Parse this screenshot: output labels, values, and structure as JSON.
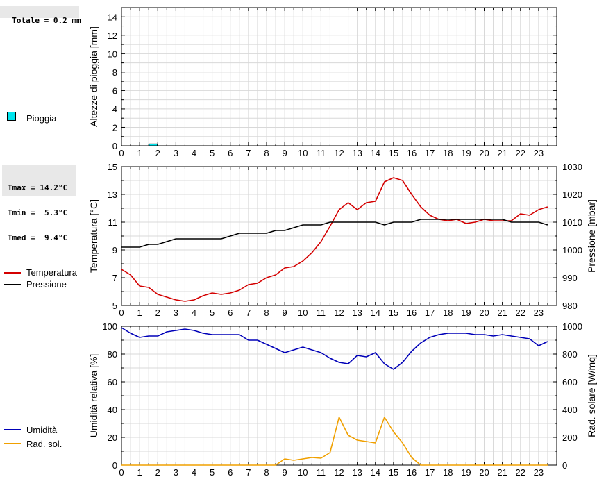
{
  "summary": {
    "rain_total": "Totale = 0.2 mm",
    "tmax": "Tmax = 14.2°C",
    "tmin": "Tmin =  5.3°C",
    "tmed": "Tmed =  9.4°C"
  },
  "legend": {
    "rain": "Pioggia",
    "temperature": "Temperatura",
    "pressure": "Pressione",
    "humidity": "Umidità",
    "radiation": "Rad. sol."
  },
  "colors": {
    "rain": "#00e5ee",
    "temperature": "#d40000",
    "pressure": "#000000",
    "humidity": "#0000b8",
    "radiation": "#f0a000",
    "grid": "#d8d8d8"
  },
  "chart_data": [
    {
      "type": "bar",
      "ylabel": "Altezze di pioggia [mm]",
      "xlim": [
        0,
        24
      ],
      "ylim": [
        0,
        15
      ],
      "yticks": [
        0,
        2,
        4,
        6,
        8,
        10,
        12,
        14
      ],
      "xticks": [
        "0",
        "1",
        "2",
        "3",
        "4",
        "5",
        "6",
        "7",
        "8",
        "9",
        "10",
        "11",
        "12",
        "13",
        "14",
        "15",
        "16",
        "17",
        "18",
        "19",
        "20",
        "21",
        "22",
        "23"
      ],
      "grid": true,
      "series": [
        {
          "name": "Pioggia",
          "x": [
            1.5
          ],
          "width": 0.5,
          "values": [
            0.2
          ]
        }
      ]
    },
    {
      "type": "line",
      "ylabel": "Temperatura [°C]",
      "ylabel_right": "Pressione [mbar]",
      "xlim": [
        0,
        24
      ],
      "ylim": [
        5,
        15
      ],
      "ylim_right": [
        980,
        1030
      ],
      "yticks": [
        5,
        7,
        9,
        11,
        13,
        15
      ],
      "yticks_right": [
        980,
        990,
        1000,
        1010,
        1020,
        1030
      ],
      "xticks": [
        "0",
        "1",
        "2",
        "3",
        "4",
        "5",
        "6",
        "7",
        "8",
        "9",
        "10",
        "11",
        "12",
        "13",
        "14",
        "15",
        "16",
        "17",
        "18",
        "19",
        "20",
        "21",
        "22",
        "23"
      ],
      "grid": true,
      "series": [
        {
          "name": "Temperatura",
          "axis": "left",
          "x": [
            0,
            0.5,
            1,
            1.5,
            2,
            2.5,
            3,
            3.5,
            4,
            4.5,
            5,
            5.5,
            6,
            6.5,
            7,
            7.5,
            8,
            8.5,
            9,
            9.5,
            10,
            10.5,
            11,
            11.5,
            12,
            12.5,
            13,
            13.5,
            14,
            14.5,
            15,
            15.5,
            16,
            16.5,
            17,
            17.5,
            18,
            18.5,
            19,
            19.5,
            20,
            20.5,
            21,
            21.5,
            22,
            22.5,
            23,
            23.5
          ],
          "values": [
            7.6,
            7.2,
            6.4,
            6.3,
            5.8,
            5.6,
            5.4,
            5.3,
            5.4,
            5.7,
            5.9,
            5.8,
            5.9,
            6.1,
            6.5,
            6.6,
            7.0,
            7.2,
            7.7,
            7.8,
            8.2,
            8.8,
            9.6,
            10.7,
            11.9,
            12.4,
            11.9,
            12.4,
            12.5,
            13.9,
            14.2,
            14.0,
            13.0,
            12.1,
            11.5,
            11.2,
            11.1,
            11.2,
            10.9,
            11.0,
            11.2,
            11.1,
            11.1,
            11.1,
            11.6,
            11.5,
            11.9,
            12.1
          ]
        },
        {
          "name": "Pressione",
          "axis": "right",
          "x": [
            0,
            0.5,
            1,
            1.5,
            2,
            2.5,
            3,
            3.5,
            4,
            4.5,
            5,
            5.5,
            6,
            6.5,
            7,
            7.5,
            8,
            8.5,
            9,
            9.5,
            10,
            10.5,
            11,
            11.5,
            12,
            12.5,
            13,
            13.5,
            14,
            14.5,
            15,
            15.5,
            16,
            16.5,
            17,
            17.5,
            18,
            18.5,
            19,
            19.5,
            20,
            20.5,
            21,
            21.5,
            22,
            22.5,
            23,
            23.5
          ],
          "values": [
            1001,
            1001,
            1001,
            1002,
            1002,
            1003,
            1004,
            1004,
            1004,
            1004,
            1004,
            1004,
            1005,
            1006,
            1006,
            1006,
            1006,
            1007,
            1007,
            1008,
            1009,
            1009,
            1009,
            1010,
            1010,
            1010,
            1010,
            1010,
            1010,
            1009,
            1010,
            1010,
            1010,
            1011,
            1011,
            1011,
            1011,
            1011,
            1011,
            1011,
            1011,
            1011,
            1011,
            1010,
            1010,
            1010,
            1010,
            1009
          ]
        }
      ]
    },
    {
      "type": "line",
      "ylabel": "Umidità relativa [%]",
      "ylabel_right": "Rad. solare [W/mq]",
      "xlim": [
        0,
        24
      ],
      "ylim": [
        0,
        100
      ],
      "ylim_right": [
        0,
        1000
      ],
      "yticks": [
        0,
        20,
        40,
        60,
        80,
        100
      ],
      "yticks_right": [
        0,
        200,
        400,
        600,
        800,
        1000
      ],
      "xticks": [
        "0",
        "1",
        "2",
        "3",
        "4",
        "5",
        "6",
        "7",
        "8",
        "9",
        "10",
        "11",
        "12",
        "13",
        "14",
        "15",
        "16",
        "17",
        "18",
        "19",
        "20",
        "21",
        "22",
        "23"
      ],
      "grid": true,
      "series": [
        {
          "name": "Umidità",
          "axis": "left",
          "x": [
            0,
            0.5,
            1,
            1.5,
            2,
            2.5,
            3,
            3.5,
            4,
            4.5,
            5,
            5.5,
            6,
            6.5,
            7,
            7.5,
            8,
            8.5,
            9,
            9.5,
            10,
            10.5,
            11,
            11.5,
            12,
            12.5,
            13,
            13.5,
            14,
            14.5,
            15,
            15.5,
            16,
            16.5,
            17,
            17.5,
            18,
            18.5,
            19,
            19.5,
            20,
            20.5,
            21,
            21.5,
            22,
            22.5,
            23,
            23.5
          ],
          "values": [
            99,
            95,
            92,
            93,
            93,
            96,
            97,
            98,
            97,
            95,
            94,
            94,
            94,
            94,
            90,
            90,
            87,
            84,
            81,
            83,
            85,
            83,
            81,
            77,
            74,
            73,
            79,
            78,
            81,
            73,
            69,
            74,
            82,
            88,
            92,
            94,
            95,
            95,
            95,
            94,
            94,
            93,
            94,
            93,
            92,
            91,
            86,
            89
          ]
        },
        {
          "name": "Rad. sol.",
          "axis": "right",
          "x": [
            0,
            0.5,
            1,
            1.5,
            2,
            2.5,
            3,
            3.5,
            4,
            4.5,
            5,
            5.5,
            6,
            6.5,
            7,
            7.5,
            8,
            8.5,
            9,
            9.5,
            10,
            10.5,
            11,
            11.5,
            12,
            12.5,
            13,
            13.5,
            14,
            14.5,
            15,
            15.5,
            16,
            16.5,
            17,
            17.5,
            18,
            18.5,
            19,
            19.5,
            20,
            20.5,
            21,
            21.5,
            22,
            22.5,
            23,
            23.5
          ],
          "values": [
            0,
            0,
            0,
            0,
            0,
            0,
            0,
            0,
            0,
            0,
            0,
            0,
            0,
            0,
            0,
            0,
            0,
            0,
            45,
            35,
            45,
            55,
            50,
            90,
            345,
            215,
            180,
            170,
            160,
            345,
            240,
            160,
            55,
            0,
            0,
            0,
            0,
            0,
            0,
            0,
            0,
            0,
            0,
            0,
            0,
            0,
            0,
            0
          ]
        }
      ]
    }
  ]
}
